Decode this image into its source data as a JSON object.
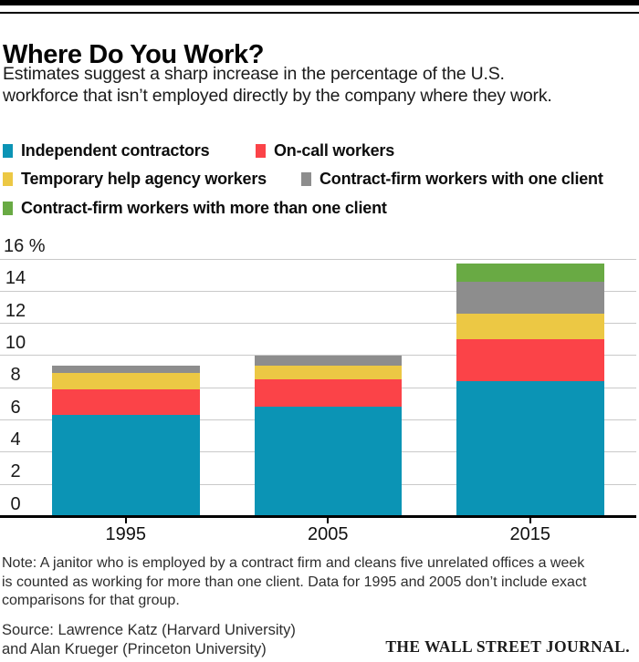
{
  "header": {
    "title": "Where Do You Work?",
    "subtitle_line1": "Estimates suggest a sharp increase in the percentage of the U.S.",
    "subtitle_line2": "workforce that isn’t employed directly by the company where they work."
  },
  "chart_data": {
    "type": "bar",
    "stacked": true,
    "categories": [
      "1995",
      "2005",
      "2015"
    ],
    "series": [
      {
        "name": "Independent contractors",
        "color": "#0b94b5",
        "values": [
          6.3,
          6.8,
          8.4
        ]
      },
      {
        "name": "On-call workers",
        "color": "#fb4348",
        "values": [
          1.6,
          1.7,
          2.6
        ]
      },
      {
        "name": "Temporary help agency workers",
        "color": "#ecc844",
        "values": [
          1.0,
          0.9,
          1.6
        ]
      },
      {
        "name": "Contract-firm workers with one client",
        "color": "#8d8d8d",
        "values": [
          0.5,
          0.6,
          2.0
        ]
      },
      {
        "name": "Contract-firm workers with more than one client",
        "color": "#69aa44",
        "values": [
          0,
          0,
          1.1
        ]
      }
    ],
    "totals": [
      9.4,
      10.0,
      15.7
    ],
    "unit": "%",
    "ylim": [
      0,
      16
    ],
    "ytick_step": 2,
    "ytick_labels": [
      "0",
      "2",
      "4",
      "6",
      "8",
      "10",
      "12",
      "14",
      "16 %"
    ],
    "grid": true,
    "legend_position": "top",
    "gridline_color": "#c9c9c9",
    "axis_color": "#000000"
  },
  "footer": {
    "note_line1": "Note: A janitor who is employed by a contract firm and cleans five unrelated offices a week",
    "note_line2": "is counted as working for more than one client. Data for 1995 and 2005 don’t include exact",
    "note_line3": "comparisons for that group.",
    "source_line1": "Source: Lawrence Katz (Harvard University)",
    "source_line2": "and Alan Krueger (Princeton University)",
    "logo": "THE WALL STREET JOURNAL."
  }
}
